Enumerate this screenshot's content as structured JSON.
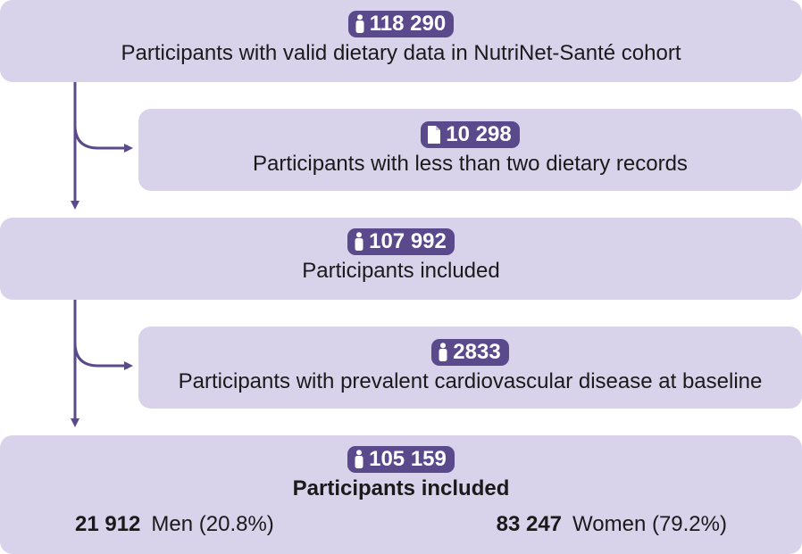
{
  "colors": {
    "box_fill": "#d8d2ea",
    "badge_fill": "#5b4a8b",
    "badge_text": "#ffffff",
    "arrow": "#5b4a8b"
  },
  "steps": [
    {
      "icon": "person-icon",
      "count": "118 290",
      "text": "Participants with valid dietary data in NutriNet-Santé cohort"
    },
    {
      "icon": "document-icon",
      "count": "10 298",
      "text": "Participants with less than two dietary records"
    },
    {
      "icon": "person-icon",
      "count": "107 992",
      "text": "Participants included"
    },
    {
      "icon": "person-icon",
      "count": "2833",
      "text": "Participants with prevalent cardiovascular disease at baseline"
    },
    {
      "icon": "person-icon",
      "count": "105 159",
      "text": "Participants included",
      "breakdown": {
        "men_count": "21 912",
        "men_label": "Men (20.8%)",
        "women_count": "83 247",
        "women_label": "Women (79.2%)"
      }
    }
  ]
}
